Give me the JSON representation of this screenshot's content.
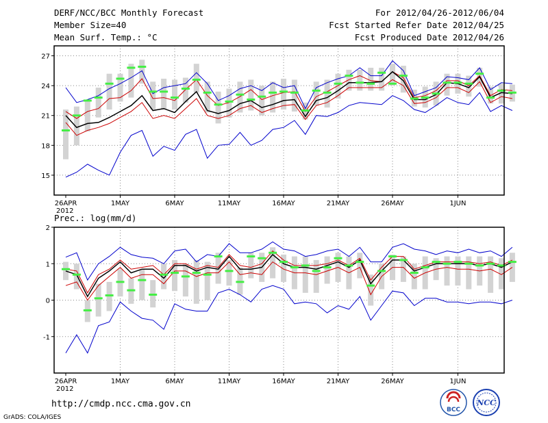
{
  "header": {
    "title": "DERF/NCC/BCC Monthly Forecast",
    "member_size": "Member Size=40",
    "variable": "Mean Surf. Temp.: °C",
    "period": "For 2012/04/26-2012/06/04",
    "refer_date": "Fcst Started Refer Date 2012/04/25",
    "produced_date": "Fcst Produced Date 2012/04/26"
  },
  "footer": {
    "url": "http://cmdp.ncc.cma.gov.cn",
    "credit": "GrADS: COLA/IGES",
    "logo_bcc": "BCC",
    "logo_ncc": "NCC"
  },
  "colors": {
    "max_min": "#0000cc",
    "percentile": "#cc0000",
    "mean": "#000000",
    "median_bar": "#44ee44",
    "box": "#d3d3d3",
    "grid": "#888888"
  },
  "chart_data": [
    {
      "type": "line",
      "title": "Mean Surf. Temp.: °C",
      "x_labels": [
        "26APR",
        "1MAY",
        "6MAY",
        "11MAY",
        "16MAY",
        "21MAY",
        "26MAY",
        "1JUN"
      ],
      "x_label_days": [
        0,
        5,
        10,
        15,
        20,
        25,
        30,
        36
      ],
      "year_label": "2012",
      "xlim": [
        0,
        39
      ],
      "ylim": [
        13,
        28
      ],
      "yticks": [
        15,
        18,
        21,
        24,
        27
      ],
      "max": [
        23.8,
        22.3,
        22.6,
        23.0,
        23.7,
        24.2,
        24.8,
        25.5,
        23.2,
        23.8,
        24.0,
        24.2,
        25.3,
        24.2,
        22.5,
        23.0,
        23.7,
        24.0,
        23.5,
        24.3,
        23.8,
        24.0,
        21.7,
        23.8,
        24.3,
        24.7,
        25.0,
        25.8,
        25.0,
        25.0,
        26.5,
        25.5,
        23.0,
        23.4,
        23.8,
        24.9,
        24.8,
        24.6,
        25.8,
        23.6,
        24.3,
        24.2
      ],
      "p_upper": [
        21.4,
        20.7,
        21.4,
        21.7,
        22.7,
        22.8,
        23.5,
        24.7,
        22.7,
        22.8,
        22.5,
        23.6,
        24.6,
        23.0,
        22.0,
        22.3,
        22.9,
        23.6,
        22.6,
        23.0,
        23.3,
        23.4,
        21.4,
        22.9,
        23.4,
        24.0,
        24.6,
        25.0,
        24.5,
        24.4,
        25.4,
        24.8,
        22.8,
        23.0,
        23.5,
        24.5,
        24.5,
        24.0,
        25.0,
        23.0,
        23.6,
        23.5
      ],
      "mean": [
        21.0,
        19.8,
        20.2,
        20.3,
        20.8,
        21.4,
        22.0,
        23.0,
        21.5,
        21.7,
        21.3,
        22.4,
        23.4,
        21.5,
        21.2,
        21.5,
        22.2,
        22.5,
        21.8,
        22.1,
        22.5,
        22.6,
        20.9,
        22.5,
        22.8,
        23.5,
        24.3,
        24.3,
        24.3,
        24.4,
        25.4,
        24.5,
        22.6,
        22.6,
        23.1,
        24.3,
        24.2,
        23.8,
        24.9,
        22.8,
        23.3,
        23.2
      ],
      "p_lower": [
        20.3,
        19.0,
        19.5,
        19.8,
        20.2,
        20.8,
        21.4,
        22.3,
        20.7,
        21.0,
        20.7,
        21.7,
        22.7,
        21.0,
        20.7,
        21.0,
        21.7,
        22.0,
        21.3,
        21.7,
        22.0,
        22.1,
        20.6,
        22.0,
        22.3,
        23.0,
        23.8,
        23.8,
        23.8,
        23.8,
        24.6,
        24.0,
        22.2,
        22.3,
        22.8,
        23.8,
        23.8,
        23.3,
        24.4,
        22.3,
        22.9,
        22.7
      ],
      "min": [
        14.8,
        15.3,
        16.1,
        15.5,
        15.0,
        17.3,
        19.0,
        19.5,
        16.9,
        17.9,
        17.5,
        19.1,
        19.6,
        16.7,
        18.0,
        18.1,
        19.3,
        18.0,
        18.5,
        19.6,
        19.8,
        20.5,
        19.1,
        21.0,
        20.9,
        21.3,
        22.0,
        22.3,
        22.2,
        22.1,
        23.0,
        22.5,
        21.6,
        21.3,
        22.0,
        22.8,
        22.3,
        22.1,
        23.3,
        21.4,
        22.0,
        21.5
      ],
      "median": [
        19.5,
        21.0,
        22.5,
        22.8,
        24.2,
        24.7,
        25.8,
        25.9,
        23.4,
        23.4,
        22.8,
        23.7,
        24.6,
        23.3,
        22.1,
        22.4,
        23.1,
        22.6,
        22.9,
        23.3,
        23.4,
        23.3,
        21.5,
        23.5,
        23.3,
        24.2,
        25.0,
        24.3,
        24.2,
        25.3,
        24.2,
        25.0,
        22.7,
        22.8,
        23.2,
        24.3,
        24.3,
        24.2,
        25.2,
        22.8,
        23.5,
        23.3
      ],
      "box_low": [
        16.6,
        18.0,
        19.4,
        20.8,
        21.6,
        22.4,
        22.8,
        24.2,
        21.6,
        21.6,
        21.6,
        22.3,
        23.3,
        21.3,
        20.2,
        20.8,
        21.3,
        21.5,
        21.0,
        21.3,
        21.6,
        21.4,
        20.6,
        22.0,
        21.8,
        22.7,
        23.5,
        23.5,
        23.5,
        23.5,
        24.0,
        23.3,
        21.9,
        21.8,
        22.0,
        23.0,
        23.2,
        22.9,
        23.9,
        22.2,
        22.2,
        22.4
      ],
      "box_high": [
        21.6,
        21.9,
        22.5,
        23.8,
        25.2,
        25.2,
        26.2,
        26.6,
        24.4,
        24.7,
        24.6,
        24.8,
        26.2,
        24.4,
        23.4,
        23.7,
        24.4,
        24.6,
        24.0,
        24.4,
        24.7,
        24.6,
        22.3,
        24.4,
        24.6,
        25.2,
        25.6,
        25.6,
        25.8,
        25.8,
        26.2,
        26.0,
        23.6,
        23.9,
        24.4,
        25.2,
        25.2,
        25.0,
        25.8,
        23.9,
        24.2,
        24.1
      ]
    },
    {
      "type": "line",
      "title": "Prec.: log(mm/d)",
      "x_labels": [
        "26APR",
        "1MAY",
        "6MAY",
        "11MAY",
        "16MAY",
        "21MAY",
        "26MAY",
        "1JUN"
      ],
      "x_label_days": [
        0,
        5,
        10,
        15,
        20,
        25,
        30,
        36
      ],
      "year_label": "2012",
      "xlim": [
        0,
        39
      ],
      "ylim": [
        -2,
        2
      ],
      "yticks": [
        -1,
        0,
        1,
        2
      ],
      "max": [
        1.18,
        1.3,
        0.55,
        1.0,
        1.2,
        1.45,
        1.25,
        1.18,
        1.15,
        1.0,
        1.35,
        1.4,
        1.05,
        1.25,
        1.2,
        1.55,
        1.3,
        1.3,
        1.4,
        1.6,
        1.4,
        1.35,
        1.2,
        1.25,
        1.35,
        1.4,
        1.2,
        1.45,
        1.05,
        1.05,
        1.45,
        1.55,
        1.4,
        1.35,
        1.25,
        1.35,
        1.3,
        1.4,
        1.3,
        1.35,
        1.2,
        1.45
      ],
      "p_upper": [
        0.85,
        0.8,
        0.2,
        0.7,
        0.85,
        1.1,
        0.85,
        0.9,
        0.95,
        0.7,
        1.0,
        1.0,
        0.85,
        0.95,
        0.9,
        1.25,
        0.95,
        0.9,
        1.0,
        1.35,
        1.1,
        0.95,
        0.95,
        0.95,
        1.0,
        1.1,
        0.95,
        1.15,
        0.55,
        0.9,
        1.2,
        1.2,
        0.85,
        0.95,
        1.05,
        1.05,
        1.05,
        1.05,
        1.0,
        1.05,
        0.95,
        1.1
      ],
      "mean": [
        0.8,
        0.7,
        0.1,
        0.6,
        0.8,
        1.05,
        0.75,
        0.85,
        0.85,
        0.6,
        0.95,
        0.95,
        0.8,
        0.9,
        0.85,
        1.2,
        0.85,
        0.85,
        0.9,
        1.25,
        1.0,
        0.9,
        0.9,
        0.85,
        0.95,
        1.05,
        0.9,
        1.1,
        0.45,
        0.8,
        1.1,
        1.1,
        0.8,
        0.9,
        1.0,
        1.0,
        1.0,
        1.0,
        0.95,
        1.0,
        0.9,
        1.05
      ],
      "p_lower": [
        0.4,
        0.5,
        0.0,
        0.4,
        0.65,
        0.9,
        0.6,
        0.7,
        0.7,
        0.45,
        0.8,
        0.8,
        0.65,
        0.75,
        0.75,
        1.05,
        0.7,
        0.75,
        0.7,
        1.05,
        0.85,
        0.75,
        0.75,
        0.7,
        0.8,
        0.9,
        0.75,
        0.9,
        0.15,
        0.65,
        0.9,
        0.9,
        0.6,
        0.75,
        0.85,
        0.9,
        0.85,
        0.85,
        0.8,
        0.85,
        0.7,
        0.9
      ],
      "min": [
        -1.45,
        -0.95,
        -1.45,
        -0.7,
        -0.6,
        -0.05,
        -0.3,
        -0.5,
        -0.55,
        -0.8,
        -0.1,
        -0.25,
        -0.3,
        -0.3,
        0.2,
        0.3,
        0.15,
        -0.05,
        0.3,
        0.4,
        0.3,
        -0.1,
        -0.05,
        -0.1,
        -0.35,
        -0.15,
        -0.25,
        0.1,
        -0.55,
        -0.15,
        0.25,
        0.2,
        -0.15,
        0.05,
        0.05,
        -0.05,
        -0.05,
        -0.1,
        -0.05,
        -0.05,
        -0.1,
        0.0
      ],
      "median": [
        0.85,
        0.7,
        -0.28,
        0.05,
        0.13,
        0.5,
        0.27,
        0.55,
        0.15,
        0.7,
        0.75,
        0.65,
        0.75,
        0.7,
        1.2,
        0.8,
        0.5,
        1.2,
        1.15,
        1.3,
        1.05,
        0.9,
        0.95,
        0.8,
        0.9,
        1.15,
        0.95,
        1.05,
        0.4,
        0.8,
        1.2,
        1.1,
        0.75,
        0.9,
        1.05,
        1.0,
        1.05,
        1.0,
        0.95,
        1.0,
        0.95,
        1.05
      ],
      "box_low": [
        0.55,
        0.3,
        -0.6,
        -0.45,
        -0.3,
        0.1,
        -0.1,
        0.0,
        -0.2,
        0.3,
        0.25,
        0.1,
        -0.1,
        0.0,
        0.45,
        0.4,
        0.15,
        0.6,
        0.5,
        0.6,
        0.5,
        0.3,
        0.2,
        0.2,
        0.45,
        0.5,
        0.3,
        0.6,
        -0.15,
        0.3,
        0.55,
        0.5,
        0.3,
        0.3,
        0.55,
        0.4,
        0.4,
        0.3,
        0.4,
        0.2,
        0.3,
        0.5
      ],
      "box_high": [
        1.05,
        1.0,
        0.0,
        0.45,
        0.5,
        0.85,
        0.6,
        0.85,
        0.55,
        1.0,
        1.1,
        1.0,
        1.1,
        1.05,
        1.3,
        1.1,
        0.9,
        1.3,
        1.3,
        1.45,
        1.25,
        1.2,
        1.2,
        1.1,
        1.2,
        1.3,
        1.2,
        1.3,
        0.7,
        1.0,
        1.25,
        1.2,
        1.0,
        1.2,
        1.15,
        1.2,
        1.2,
        1.2,
        1.2,
        1.2,
        1.15,
        1.3
      ]
    }
  ]
}
